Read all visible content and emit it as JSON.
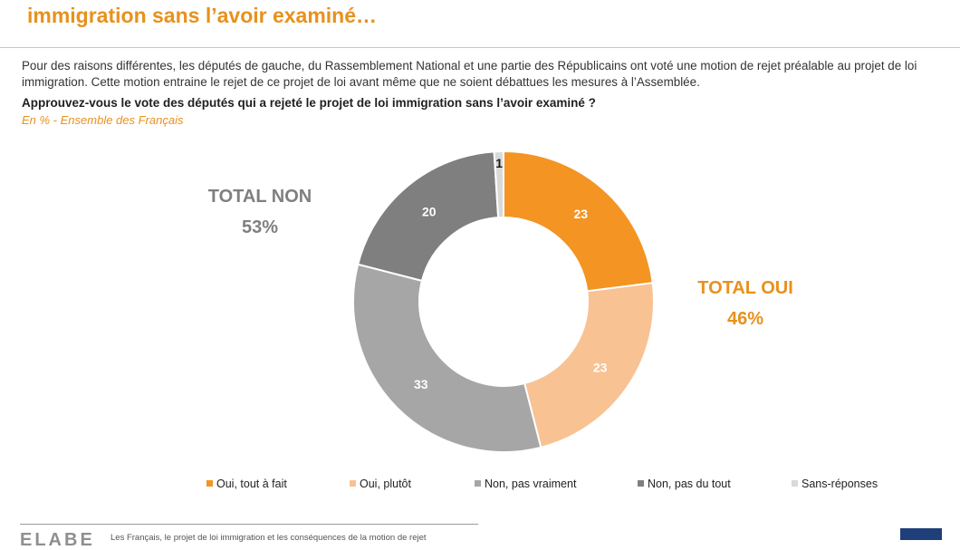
{
  "header": {
    "title": "immigration sans l’avoir examiné…",
    "intro_line1": "Pour des raisons différentes, les députés de gauche, du Rassemblement National et une partie des Républicains ont voté une motion de rejet préalable au projet de loi",
    "intro_line2": "immigration. Cette motion entraine le rejet de ce projet de loi avant même que ne soient débattues les mesures à l’Assemblée.",
    "question": "Approuvez-vous le vote des députés qui a rejeté le projet de loi immigration sans l’avoir examiné ?",
    "base": "En % - Ensemble des Français"
  },
  "totals": {
    "non_label": "TOTAL NON",
    "non_value": "53%",
    "oui_label": "TOTAL OUI",
    "oui_value": "46%"
  },
  "chart_data": {
    "type": "pie",
    "variant": "donut",
    "categories": [
      "Oui, tout à fait",
      "Oui, plutôt",
      "Non, pas vraiment",
      "Non, pas du tout",
      "Sans-réponses"
    ],
    "values": [
      23,
      23,
      33,
      20,
      1
    ],
    "colors": [
      "#f39423",
      "#f8c293",
      "#a6a6a6",
      "#7f7f7f",
      "#d9d9d9"
    ],
    "label_colors": [
      "#ffffff",
      "#ffffff",
      "#ffffff",
      "#ffffff",
      "#1a1a1a"
    ],
    "legend_position": "bottom",
    "unit": "%"
  },
  "footer": {
    "logo": "ELABE",
    "text": "Les Français, le projet de loi immigration et les conséquences de la motion de rejet"
  }
}
